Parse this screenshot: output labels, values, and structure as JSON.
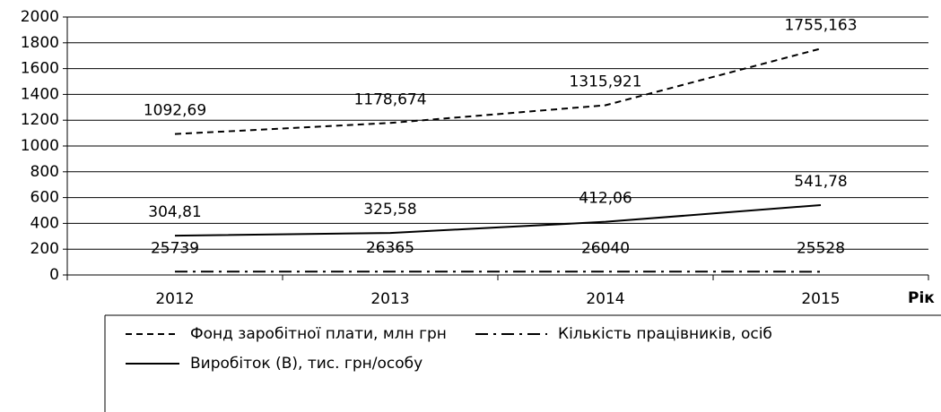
{
  "chart_data": {
    "type": "line",
    "categories": [
      "2012",
      "2013",
      "2014",
      "2015"
    ],
    "x_label": "Рік",
    "ylim": [
      0,
      2000
    ],
    "yticks": [
      0,
      200,
      400,
      600,
      800,
      1000,
      1200,
      1400,
      1600,
      1800,
      2000
    ],
    "grid": true,
    "legend": "bottom",
    "series": [
      {
        "name": "Фонд заробітної плати, млн грн",
        "color": "#000000",
        "dash": "dashed",
        "values": [
          1092.69,
          1178.674,
          1315.921,
          1755.163
        ],
        "value_labels": [
          "1092,69",
          "1178,674",
          "1315,921",
          "1755,163"
        ]
      },
      {
        "name": "Кількість працівників, осіб",
        "color": "#000000",
        "dash": "dashdot",
        "values": [
          25.739,
          26.365,
          26.04,
          25.528
        ],
        "value_labels": [
          "25739",
          "26365",
          "26040",
          "25528"
        ]
      },
      {
        "name": "Виробіток (В), тис. грн/особу",
        "color": "#000000",
        "dash": "solid",
        "values": [
          304.81,
          325.58,
          412.06,
          541.78
        ],
        "value_labels": [
          "304,81",
          "325,58",
          "412,06",
          "541,78"
        ]
      }
    ]
  }
}
